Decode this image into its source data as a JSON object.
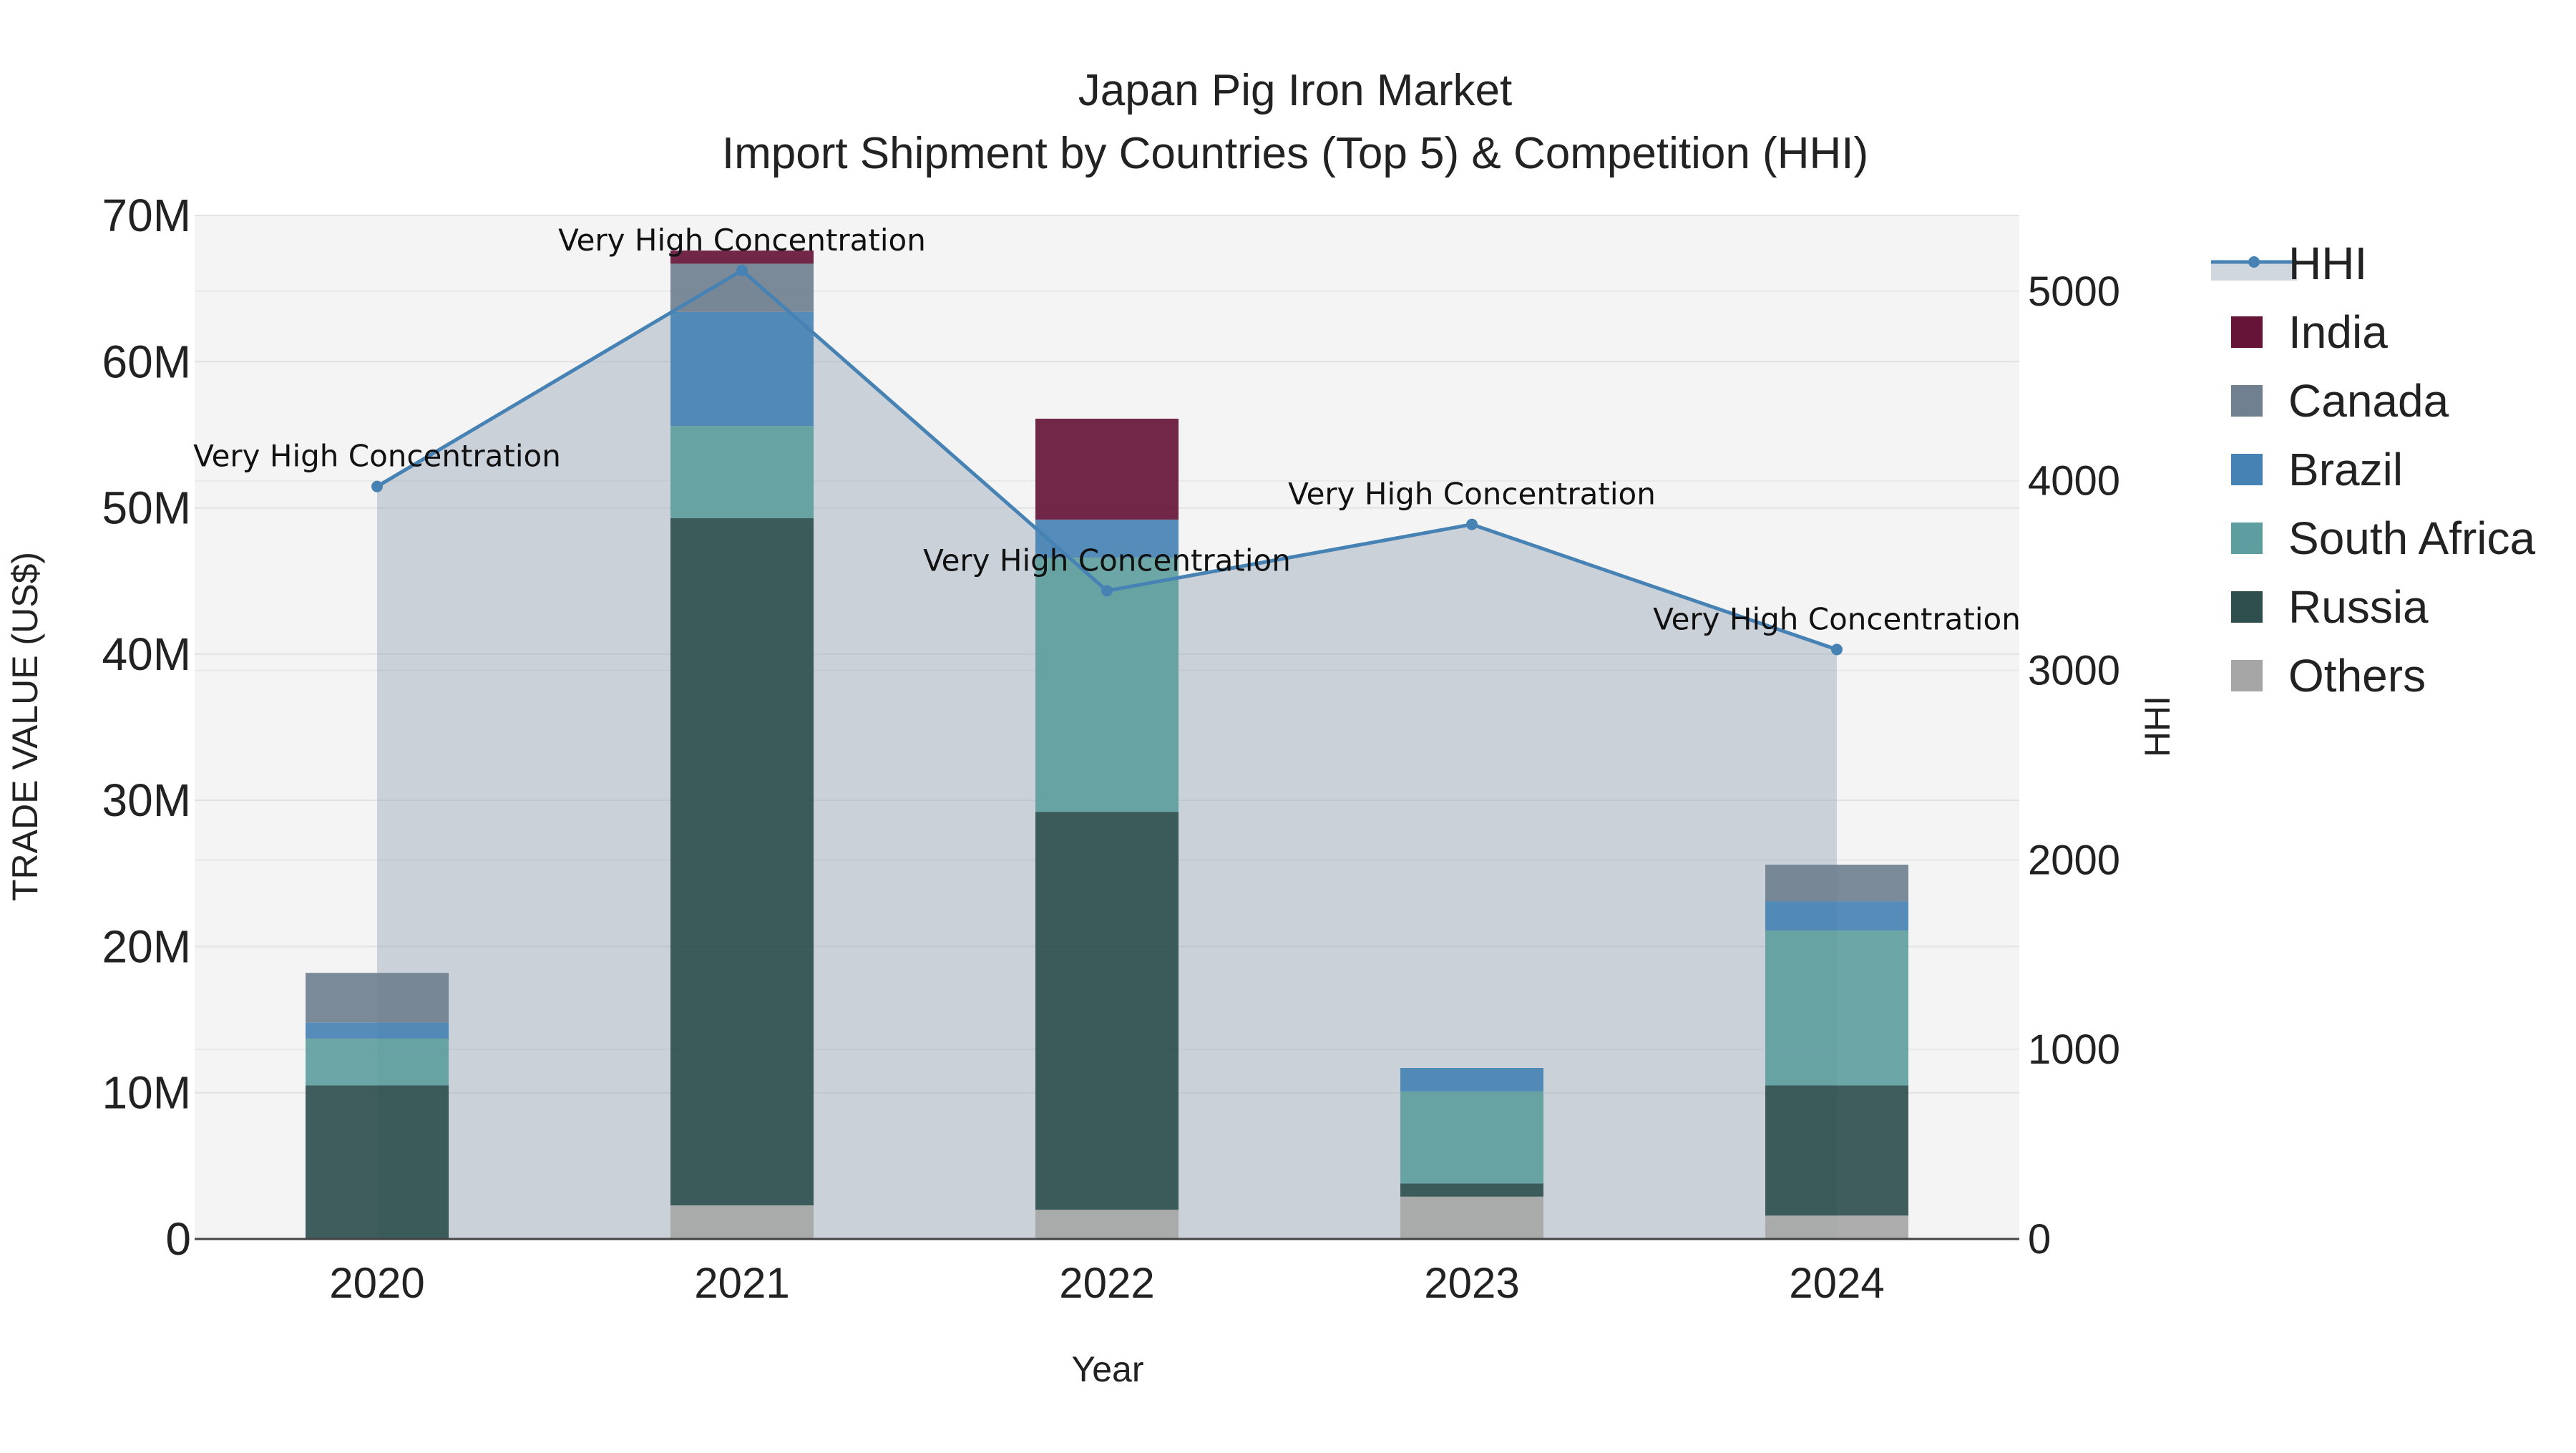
{
  "chart_data": {
    "type": "bar",
    "title": "Japan Pig Iron Market",
    "subtitle": "Import Shipment by Countries (Top 5) & Competition (HHI)",
    "xlabel": "Year",
    "ylabel": "TRADE VALUE (US$)",
    "y2label": "HHI",
    "categories": [
      "2020",
      "2021",
      "2022",
      "2023",
      "2024"
    ],
    "ylim": [
      0,
      70000000
    ],
    "y_ticks": [
      0,
      10000000,
      20000000,
      30000000,
      40000000,
      50000000,
      60000000,
      70000000
    ],
    "y_tick_labels": [
      "0",
      "10M",
      "20M",
      "30M",
      "40M",
      "50M",
      "60M",
      "70M"
    ],
    "y2lim": [
      0,
      5400
    ],
    "y2_ticks": [
      0,
      1000,
      2000,
      3000,
      4000,
      5000
    ],
    "y2_tick_labels": [
      "0",
      "1000",
      "2000",
      "3000",
      "4000",
      "5000"
    ],
    "grid": true,
    "legend_position": "right",
    "series": [
      {
        "name": "Others",
        "color": "#a6a6a6",
        "values": [
          0,
          2300000,
          2000000,
          2900000,
          1600000
        ]
      },
      {
        "name": "Russia",
        "color": "#2f4f4f",
        "values": [
          10500000,
          47000000,
          27200000,
          900000,
          8900000
        ]
      },
      {
        "name": "South Africa",
        "color": "#5f9ea0",
        "values": [
          3200000,
          6300000,
          17400000,
          6300000,
          10600000
        ]
      },
      {
        "name": "Brazil",
        "color": "#4682b4",
        "values": [
          1100000,
          7800000,
          2600000,
          1600000,
          2000000
        ]
      },
      {
        "name": "Canada",
        "color": "#708090",
        "values": [
          3400000,
          3300000,
          0,
          0,
          2500000
        ]
      },
      {
        "name": "India",
        "color": "#661538",
        "values": [
          0,
          900000,
          6900000,
          0,
          0
        ]
      }
    ],
    "hhi": {
      "name": "HHI",
      "color": "#4682b4",
      "values": [
        3970,
        5110,
        3420,
        3770,
        3110
      ],
      "annotations": [
        "Very High Concentration",
        "Very High Concentration",
        "Very High Concentration",
        "Very High Concentration",
        "Very High Concentration"
      ]
    },
    "legend_order": [
      "HHI",
      "India",
      "Canada",
      "Brazil",
      "South Africa",
      "Russia",
      "Others"
    ]
  }
}
